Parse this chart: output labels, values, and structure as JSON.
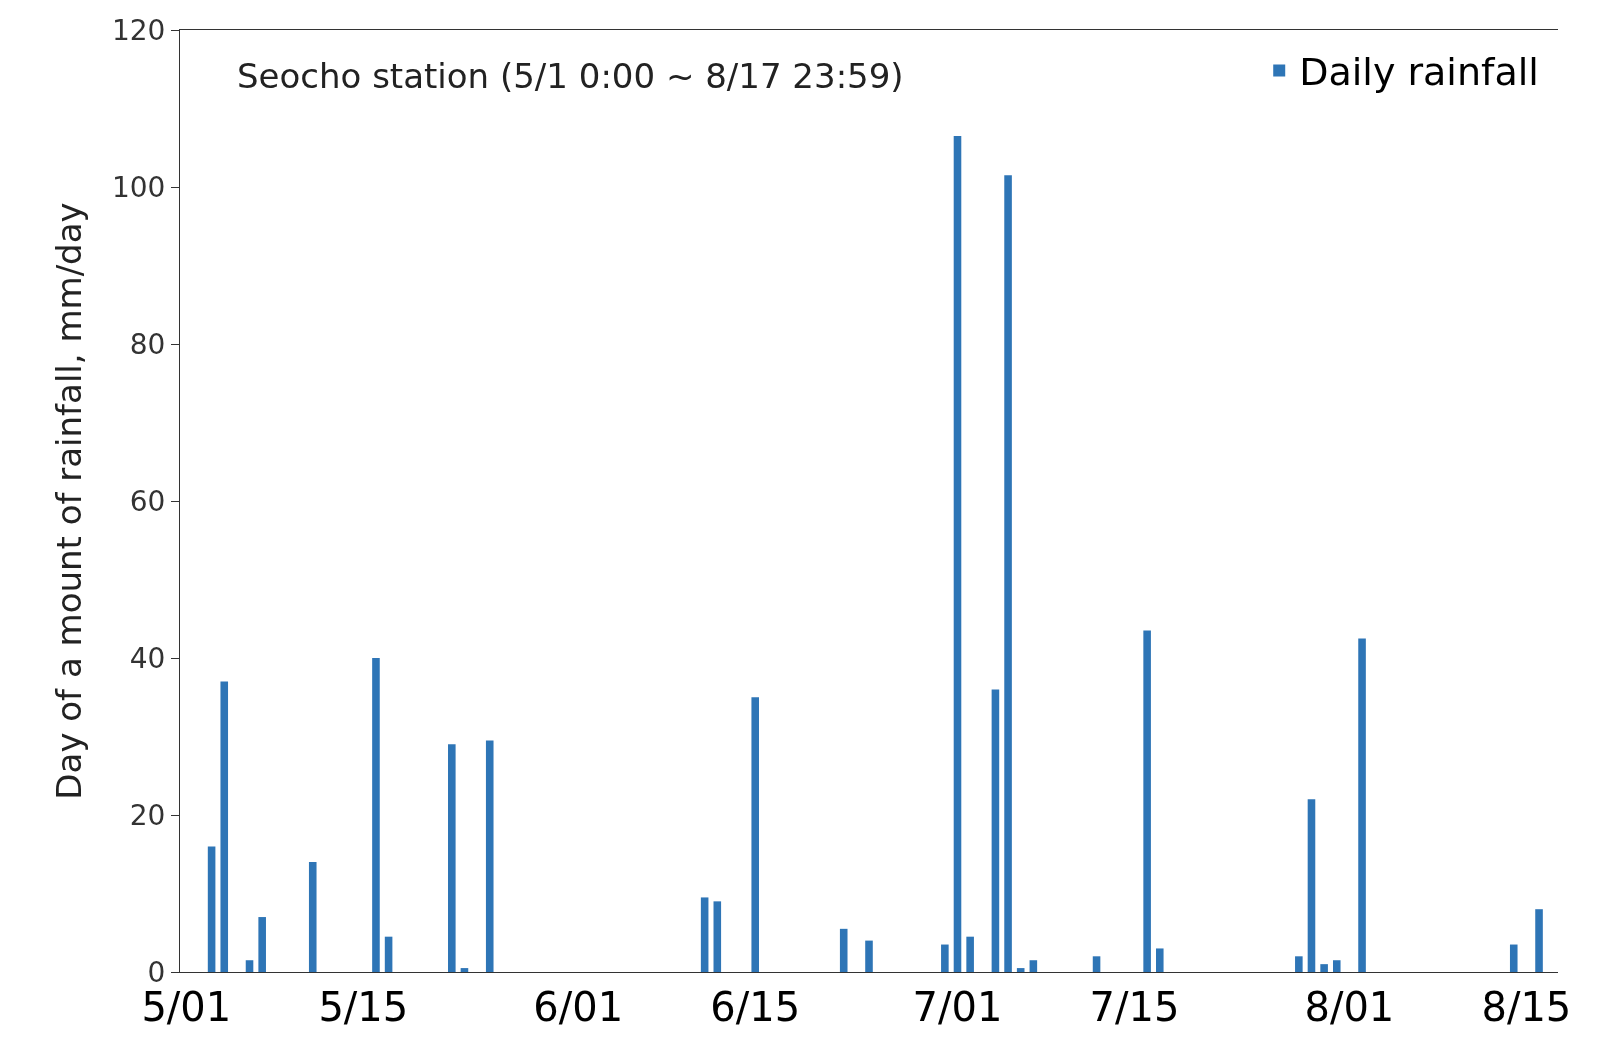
{
  "chart_data": {
    "type": "bar",
    "title": "Seocho station (5/1 0:00 ~ 8/17 23:59)",
    "ylabel": "Day of a mount of rainfall, mm/day",
    "categories": [
      "5/01",
      null,
      null,
      null,
      null,
      null,
      null,
      null,
      null,
      null,
      null,
      null,
      null,
      null,
      "5/15",
      null,
      null,
      null,
      null,
      null,
      null,
      null,
      null,
      null,
      null,
      null,
      null,
      null,
      null,
      null,
      null,
      "6/01",
      null,
      null,
      null,
      null,
      null,
      null,
      null,
      null,
      null,
      null,
      null,
      null,
      null,
      "6/15",
      null,
      null,
      null,
      null,
      null,
      null,
      null,
      null,
      null,
      null,
      null,
      null,
      null,
      null,
      null,
      "7/01",
      null,
      null,
      null,
      null,
      null,
      null,
      null,
      null,
      null,
      null,
      null,
      null,
      null,
      "7/15",
      null,
      null,
      null,
      null,
      null,
      null,
      null,
      null,
      null,
      null,
      null,
      null,
      null,
      null,
      null,
      null,
      "8/01",
      null,
      null,
      null,
      null,
      null,
      null,
      null,
      null,
      null,
      null,
      null,
      null,
      null,
      "8/15",
      null,
      null
    ],
    "series": [
      {
        "name": "Daily rainfall",
        "color": "#2e75b6",
        "values": [
          null,
          null,
          16,
          37,
          null,
          1.5,
          7,
          null,
          null,
          null,
          14,
          null,
          null,
          null,
          null,
          40,
          4.5,
          null,
          null,
          null,
          null,
          29,
          0.5,
          null,
          29.5,
          null,
          null,
          null,
          null,
          null,
          null,
          null,
          null,
          null,
          null,
          null,
          null,
          null,
          null,
          null,
          null,
          9.5,
          9,
          null,
          null,
          35,
          null,
          null,
          null,
          null,
          null,
          null,
          5.5,
          null,
          4,
          null,
          null,
          null,
          null,
          null,
          3.5,
          106.5,
          4.5,
          null,
          36,
          101.5,
          0.5,
          1.5,
          null,
          null,
          null,
          null,
          2,
          null,
          null,
          null,
          43.5,
          3,
          null,
          null,
          null,
          null,
          null,
          null,
          null,
          null,
          null,
          null,
          2,
          22,
          1,
          1.5,
          null,
          42.5,
          null,
          null,
          null,
          null,
          null,
          null,
          null,
          null,
          null,
          null,
          null,
          3.5,
          null,
          8,
          null
        ]
      }
    ],
    "ylim": [
      0,
      120
    ],
    "yticks": [
      0,
      20,
      40,
      60,
      80,
      100,
      120
    ],
    "legend": "top right"
  }
}
